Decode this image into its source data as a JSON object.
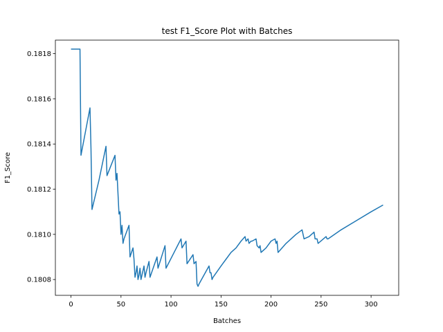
{
  "chart_data": {
    "type": "line",
    "title": "test F1_Score Plot with Batches",
    "xlabel": "Batches",
    "ylabel": "F1_Score",
    "xlim": [
      -15.6,
      327.6
    ],
    "ylim": [
      0.18073,
      0.18186
    ],
    "x_ticks": [
      0,
      50,
      100,
      150,
      200,
      250,
      300
    ],
    "y_ticks": [
      0.1808,
      0.181,
      0.1812,
      0.1814,
      0.1816,
      0.1818
    ],
    "y_tick_labels": [
      "0.1808",
      "0.1810",
      "0.1812",
      "0.1814",
      "0.1816",
      "0.1818"
    ],
    "grid": false,
    "series": [
      {
        "color": "#1f77b4",
        "x": [
          0,
          9,
          10,
          19,
          20,
          21,
          28,
          35,
          36,
          44,
          45,
          46,
          47,
          48,
          49,
          50,
          51,
          52,
          53,
          58,
          59,
          62,
          63,
          64,
          65,
          66,
          67,
          68,
          69,
          70,
          72,
          73,
          74,
          75,
          78,
          79,
          86,
          87,
          94,
          95,
          110,
          111,
          115,
          116,
          122,
          123,
          125,
          126,
          127,
          128,
          138,
          139,
          140,
          141,
          142,
          150,
          155,
          160,
          165,
          170,
          174,
          175,
          177,
          178,
          180,
          181,
          185,
          186,
          188,
          189,
          190,
          195,
          200,
          204,
          205,
          206,
          207,
          215,
          225,
          231,
          232,
          233,
          238,
          243,
          244,
          246,
          247,
          255,
          256,
          257,
          270,
          285,
          300,
          312
        ],
        "y": [
          0.18182,
          0.18182,
          0.18135,
          0.18156,
          0.18138,
          0.18111,
          0.18124,
          0.18139,
          0.18126,
          0.18135,
          0.18124,
          0.18127,
          0.18118,
          0.18109,
          0.1811,
          0.181,
          0.18104,
          0.18096,
          0.18098,
          0.18104,
          0.1809,
          0.18094,
          0.18089,
          0.18081,
          0.18083,
          0.18086,
          0.1808,
          0.18082,
          0.18085,
          0.1808,
          0.18084,
          0.18086,
          0.18081,
          0.18083,
          0.18088,
          0.18081,
          0.1809,
          0.18085,
          0.18095,
          0.18085,
          0.18098,
          0.18094,
          0.18097,
          0.18087,
          0.18091,
          0.18087,
          0.18088,
          0.18078,
          0.18077,
          0.18078,
          0.18086,
          0.18083,
          0.18083,
          0.1808,
          0.18081,
          0.18086,
          0.18089,
          0.18092,
          0.18094,
          0.18097,
          0.18099,
          0.18097,
          0.18098,
          0.18096,
          0.18097,
          0.18097,
          0.18098,
          0.18095,
          0.18094,
          0.18095,
          0.18092,
          0.18094,
          0.18097,
          0.18098,
          0.18096,
          0.18097,
          0.18092,
          0.18096,
          0.181,
          0.18102,
          0.181,
          0.18098,
          0.18099,
          0.18101,
          0.18098,
          0.18098,
          0.18096,
          0.18099,
          0.18098,
          0.18098,
          0.18102,
          0.18106,
          0.1811,
          0.18113
        ]
      }
    ]
  }
}
